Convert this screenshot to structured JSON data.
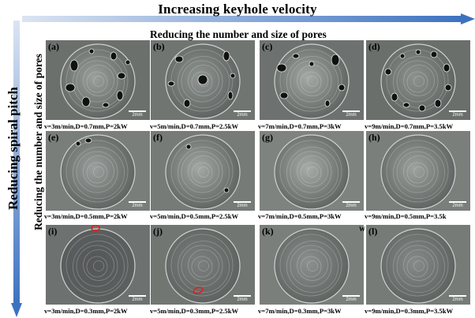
{
  "header": {
    "top_title": "Increasing keyhole velocity",
    "left_title": "Reducing spiral pitch",
    "sub_top": "Reducing the number and size of pores",
    "sub_left": "Reducing the number and size of pores"
  },
  "panels": [
    {
      "label": "(a)",
      "caption": "v=3m/min,D=0.7mm,P=2kW",
      "scale": "2mm"
    },
    {
      "label": "(b)",
      "caption": "v=5m/min,D=0.7mm,P=2.5kW",
      "scale": "2mm"
    },
    {
      "label": "(c)",
      "caption": "v=7m/min,D=0.7mm,P=3kW",
      "scale": "2mm"
    },
    {
      "label": "(d)",
      "caption": "v=9m/min,D=0.7mm,P=3.5kW",
      "scale": "2mm"
    },
    {
      "label": "(e)",
      "caption": "v=3m/min,D=0.5mm,P=2kW",
      "scale": "2mm"
    },
    {
      "label": "(f)",
      "caption": "v=5m/min,D=0.5mm,P=2.5kW",
      "scale": "2mm"
    },
    {
      "label": "(g)",
      "caption": "v=7m/min,D=0.5mm,P=3kW",
      "scale": "2mm"
    },
    {
      "label": "(h)",
      "caption": "v=9m/min,D=0.5mm,P=3.5k",
      "scale": "2mm"
    },
    {
      "label": "(i)",
      "caption": "v=3m/min,D=0.3mm,P=2kW",
      "scale": "2mm"
    },
    {
      "label": "(j)",
      "caption": "v=5m/min,D=0.3mm,P=2.5kW",
      "scale": "2mm"
    },
    {
      "label": "(k)",
      "caption": "v=7m/min,D=0.3mm,P=3kW",
      "scale": "2mm"
    },
    {
      "label": "(l)",
      "caption": "v=9m/min,D=0.3mm,P=3.5kW",
      "scale": "2mm"
    }
  ],
  "stray_text": "W",
  "colors": {
    "arrow": "#4f81bd",
    "arrow_light": "#c9d7ee",
    "highlight": "#e0201b"
  }
}
